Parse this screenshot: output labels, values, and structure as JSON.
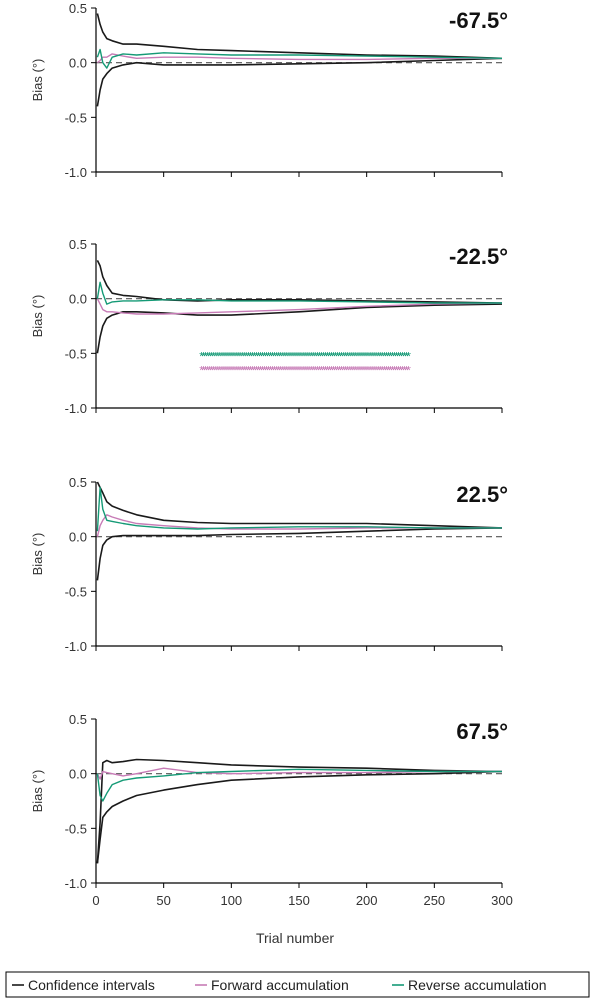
{
  "colors": {
    "ci": "#1a1a1a",
    "forward": "#c77bb6",
    "reverse": "#159a76",
    "zero_line": "#555555",
    "axis": "#000000"
  },
  "xlabel": "Trial number",
  "legend": [
    {
      "label": "Confidence intervals",
      "color": "#1a1a1a"
    },
    {
      "label": "Forward accumulation",
      "color": "#c77bb6"
    },
    {
      "label": "Reverse accumulation",
      "color": "#159a76"
    }
  ],
  "legend_position": "bottom",
  "chart_data": [
    {
      "type": "line",
      "title": "-67.5°",
      "ylabel": "Bias (°)",
      "xlim": [
        0,
        300
      ],
      "ylim": [
        -1.0,
        0.5
      ],
      "xticks": [
        "0",
        "50",
        "100",
        "150",
        "200",
        "250",
        "300"
      ],
      "yticks": [
        "0.5",
        "0.0",
        "-0.5",
        "-1.0"
      ],
      "x": [
        1,
        3,
        5,
        8,
        12,
        20,
        30,
        50,
        75,
        100,
        150,
        200,
        250,
        300
      ],
      "series": [
        {
          "name": "Confidence intervals",
          "values": [
            0.45,
            0.35,
            0.28,
            0.22,
            0.2,
            0.17,
            0.17,
            0.15,
            0.12,
            0.11,
            0.09,
            0.07,
            0.06,
            0.04
          ]
        },
        {
          "name": "Confidence intervals",
          "values": [
            -0.4,
            -0.25,
            -0.15,
            -0.1,
            -0.05,
            -0.02,
            0.0,
            -0.02,
            -0.02,
            -0.02,
            -0.01,
            0.0,
            0.02,
            0.04
          ]
        },
        {
          "name": "Forward accumulation",
          "values": [
            0.0,
            0.02,
            0.05,
            0.05,
            0.08,
            0.06,
            0.04,
            0.05,
            0.05,
            0.04,
            0.03,
            0.03,
            0.04,
            0.04
          ]
        },
        {
          "name": "Reverse accumulation",
          "values": [
            0.05,
            0.12,
            0.0,
            -0.05,
            0.05,
            0.08,
            0.07,
            0.09,
            0.08,
            0.07,
            0.07,
            0.06,
            0.05,
            0.04
          ]
        }
      ],
      "markers": []
    },
    {
      "type": "line",
      "title": "-22.5°",
      "ylabel": "Bias (°)",
      "xlim": [
        0,
        300
      ],
      "ylim": [
        -1.0,
        0.5
      ],
      "xticks": [
        "0",
        "50",
        "100",
        "150",
        "200",
        "250",
        "300"
      ],
      "yticks": [
        "0.5",
        "0.0",
        "-0.5",
        "-1.0"
      ],
      "x": [
        1,
        3,
        5,
        8,
        12,
        20,
        30,
        50,
        75,
        100,
        150,
        200,
        250,
        300
      ],
      "series": [
        {
          "name": "Confidence intervals",
          "values": [
            0.35,
            0.3,
            0.2,
            0.12,
            0.05,
            0.03,
            0.02,
            -0.01,
            -0.02,
            -0.01,
            -0.01,
            -0.02,
            -0.03,
            -0.04
          ]
        },
        {
          "name": "Confidence intervals",
          "values": [
            -0.5,
            -0.35,
            -0.25,
            -0.18,
            -0.15,
            -0.12,
            -0.12,
            -0.13,
            -0.15,
            -0.15,
            -0.12,
            -0.08,
            -0.06,
            -0.05
          ]
        },
        {
          "name": "Forward accumulation",
          "values": [
            0.0,
            -0.05,
            -0.1,
            -0.12,
            -0.12,
            -0.13,
            -0.14,
            -0.14,
            -0.13,
            -0.12,
            -0.1,
            -0.07,
            -0.05,
            -0.04
          ]
        },
        {
          "name": "Reverse accumulation",
          "values": [
            0.0,
            0.15,
            0.05,
            -0.05,
            -0.03,
            -0.02,
            -0.02,
            -0.01,
            -0.01,
            -0.02,
            -0.02,
            -0.03,
            -0.04,
            -0.04
          ]
        }
      ],
      "markers": [
        {
          "series": "Reverse accumulation",
          "x_start": 78,
          "x_end": 232,
          "y": -0.52
        },
        {
          "series": "Forward accumulation",
          "x_start": 78,
          "x_end": 232,
          "y": -0.65
        }
      ]
    },
    {
      "type": "line",
      "title": "22.5°",
      "ylabel": "Bias (°)",
      "xlim": [
        0,
        300
      ],
      "ylim": [
        -1.0,
        0.5
      ],
      "xticks": [
        "0",
        "50",
        "100",
        "150",
        "200",
        "250",
        "300"
      ],
      "yticks": [
        "0.5",
        "0.0",
        "-0.5",
        "-1.0"
      ],
      "x": [
        1,
        3,
        5,
        8,
        12,
        20,
        30,
        50,
        75,
        100,
        150,
        200,
        250,
        300
      ],
      "series": [
        {
          "name": "Confidence intervals",
          "values": [
            0.5,
            0.45,
            0.4,
            0.32,
            0.28,
            0.24,
            0.2,
            0.15,
            0.13,
            0.12,
            0.12,
            0.12,
            0.1,
            0.08
          ]
        },
        {
          "name": "Confidence intervals",
          "values": [
            -0.4,
            -0.2,
            -0.08,
            -0.03,
            0.0,
            0.01,
            0.01,
            0.01,
            0.01,
            0.02,
            0.03,
            0.05,
            0.07,
            0.08
          ]
        },
        {
          "name": "Forward accumulation",
          "values": [
            0.0,
            0.1,
            0.15,
            0.2,
            0.18,
            0.15,
            0.12,
            0.1,
            0.08,
            0.07,
            0.07,
            0.08,
            0.08,
            0.08
          ]
        },
        {
          "name": "Reverse accumulation",
          "values": [
            0.05,
            0.45,
            0.25,
            0.15,
            0.14,
            0.12,
            0.1,
            0.08,
            0.07,
            0.08,
            0.09,
            0.09,
            0.08,
            0.08
          ]
        }
      ],
      "markers": []
    },
    {
      "type": "line",
      "title": "67.5°",
      "ylabel": "Bias (°)",
      "xlim": [
        0,
        300
      ],
      "ylim": [
        -1.0,
        0.5
      ],
      "xticks": [
        "0",
        "50",
        "100",
        "150",
        "200",
        "250",
        "300"
      ],
      "yticks": [
        "0.5",
        "0.0",
        "-0.5",
        "-1.0"
      ],
      "x": [
        1,
        3,
        5,
        8,
        12,
        20,
        30,
        50,
        75,
        100,
        150,
        200,
        250,
        300
      ],
      "series": [
        {
          "name": "Confidence intervals",
          "values": [
            -0.82,
            -0.45,
            0.1,
            0.12,
            0.1,
            0.11,
            0.13,
            0.12,
            0.1,
            0.08,
            0.06,
            0.05,
            0.03,
            0.02
          ]
        },
        {
          "name": "Confidence intervals",
          "values": [
            -0.82,
            -0.6,
            -0.4,
            -0.35,
            -0.3,
            -0.25,
            -0.2,
            -0.15,
            -0.1,
            -0.06,
            -0.03,
            -0.01,
            0.0,
            0.02
          ]
        },
        {
          "name": "Forward accumulation",
          "values": [
            0.0,
            -0.05,
            0.02,
            0.01,
            0.0,
            -0.02,
            0.0,
            0.05,
            0.01,
            0.0,
            0.01,
            0.01,
            0.02,
            0.02
          ]
        },
        {
          "name": "Reverse accumulation",
          "values": [
            0.0,
            -0.2,
            -0.25,
            -0.18,
            -0.1,
            -0.06,
            -0.04,
            -0.02,
            0.01,
            0.02,
            0.04,
            0.03,
            0.02,
            0.02
          ]
        }
      ],
      "markers": []
    }
  ]
}
